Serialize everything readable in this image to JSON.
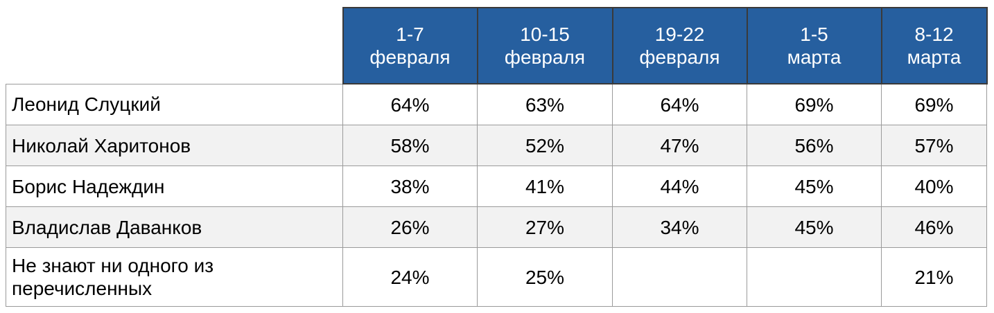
{
  "table": {
    "columns": [
      "1-7\nфевраля",
      "10-15\nфевраля",
      "19-22\nфевраля",
      "1-5\nмарта",
      "8-12\nмарта"
    ],
    "rows": [
      {
        "label": "Леонид Слуцкий",
        "cells": [
          "64%",
          "63%",
          "64%",
          "69%",
          "69%"
        ]
      },
      {
        "label": "Николай Харитонов",
        "cells": [
          "58%",
          "52%",
          "47%",
          "56%",
          "57%"
        ]
      },
      {
        "label": "Борис Надеждин",
        "cells": [
          "38%",
          "41%",
          "44%",
          "45%",
          "40%"
        ]
      },
      {
        "label": "Владислав Даванков",
        "cells": [
          "26%",
          "27%",
          "34%",
          "45%",
          "46%"
        ]
      },
      {
        "label": "Не знают ни одного из перечисленных",
        "cells": [
          "24%",
          "25%",
          null,
          null,
          "21%"
        ]
      }
    ]
  }
}
